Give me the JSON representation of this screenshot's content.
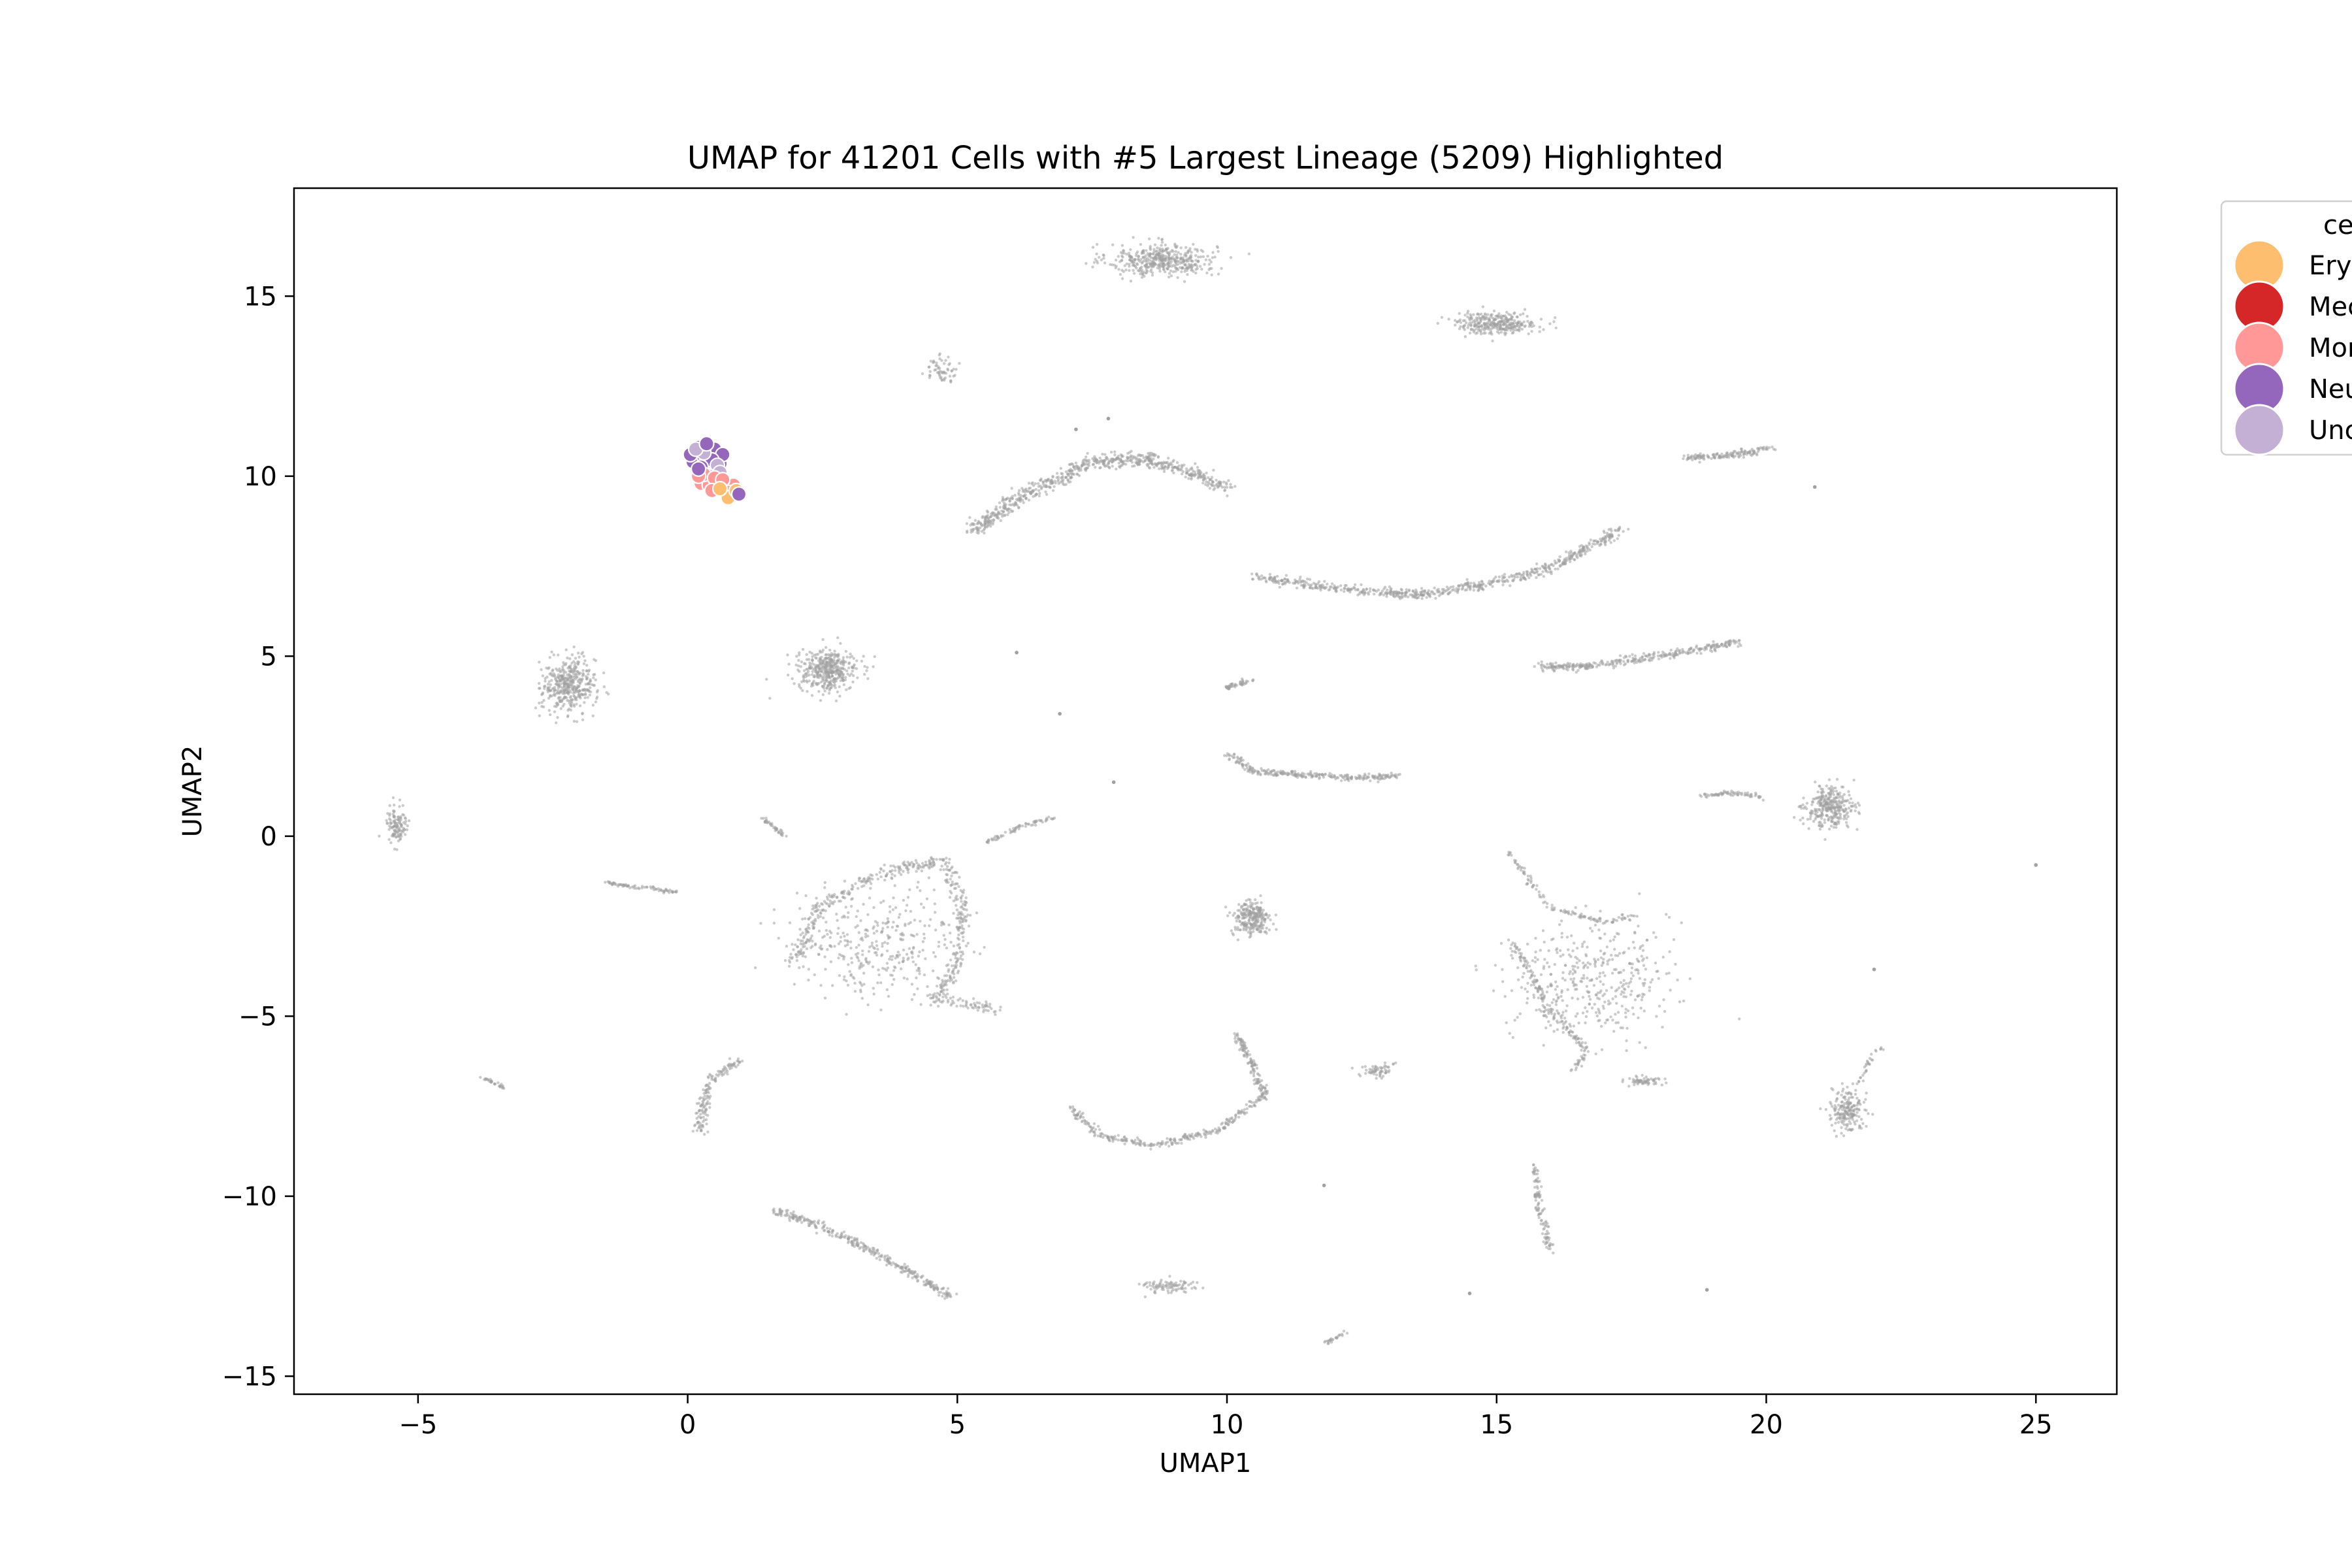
{
  "chart_data": {
    "type": "scatter",
    "title": "UMAP for 41201 Cells with #5 Largest Lineage (5209) Highlighted",
    "xlabel": "UMAP1",
    "ylabel": "UMAP2",
    "xlim": [
      -7.3,
      26.5
    ],
    "ylim": [
      -15.5,
      18.0
    ],
    "x_ticks": [
      -5,
      0,
      5,
      10,
      15,
      20,
      25
    ],
    "y_ticks": [
      -15,
      -10,
      -5,
      0,
      5,
      10,
      15
    ],
    "x_tick_labels": [
      "−5",
      "0",
      "5",
      "10",
      "15",
      "20",
      "25"
    ],
    "y_tick_labels": [
      "−15",
      "−10",
      "−5",
      "0",
      "5",
      "10",
      "15"
    ],
    "grid": false,
    "legend": {
      "title": "ce",
      "placement": "outside-upper-right",
      "entries": [
        {
          "label": "Ery",
          "color": "#fdbf6f"
        },
        {
          "label": "Mec",
          "color": "#d62728"
        },
        {
          "label": "Mon",
          "color": "#ff9896"
        },
        {
          "label": "Neu",
          "color": "#9467bd"
        },
        {
          "label": "Unc",
          "color": "#c5b0d5"
        }
      ]
    },
    "background_color": "#a0a0a0",
    "background_clusters": [
      {
        "shape": "blob",
        "x": 8.8,
        "y": 16.0,
        "rx": 1.0,
        "ry": 0.45,
        "n": 450
      },
      {
        "shape": "blob",
        "x": 15.0,
        "y": 14.25,
        "rx": 0.75,
        "ry": 0.3,
        "n": 320
      },
      {
        "shape": "blob",
        "x": 4.7,
        "y": 12.95,
        "rx": 0.3,
        "ry": 0.35,
        "n": 60
      },
      {
        "shape": "blob",
        "x": -2.2,
        "y": 4.2,
        "rx": 0.5,
        "ry": 0.75,
        "n": 420
      },
      {
        "shape": "blob",
        "x": 2.6,
        "y": 4.6,
        "rx": 0.55,
        "ry": 0.55,
        "n": 420
      },
      {
        "shape": "blob",
        "x": -5.4,
        "y": 0.3,
        "rx": 0.2,
        "ry": 0.6,
        "n": 120
      },
      {
        "shape": "blob",
        "x": 10.45,
        "y": -2.3,
        "rx": 0.35,
        "ry": 0.5,
        "n": 260
      },
      {
        "shape": "blob",
        "x": 21.2,
        "y": 0.8,
        "rx": 0.45,
        "ry": 0.55,
        "n": 320
      },
      {
        "shape": "blob",
        "x": 21.5,
        "y": -7.6,
        "rx": 0.3,
        "ry": 0.6,
        "n": 200
      },
      {
        "shape": "blob",
        "x": 12.8,
        "y": -6.5,
        "rx": 0.3,
        "ry": 0.2,
        "n": 60
      },
      {
        "shape": "blob",
        "x": 17.7,
        "y": -6.8,
        "rx": 0.35,
        "ry": 0.15,
        "n": 60
      },
      {
        "shape": "blob",
        "x": 8.9,
        "y": -12.5,
        "rx": 0.5,
        "ry": 0.2,
        "n": 90
      },
      {
        "shape": "blob",
        "x": 16.7,
        "y": -4.0,
        "rx": 1.5,
        "ry": 1.6,
        "n": 420
      },
      {
        "shape": "blob",
        "x": 3.6,
        "y": -3.0,
        "rx": 1.6,
        "ry": 1.4,
        "n": 360
      },
      {
        "shape": "path",
        "pts": [
          [
            5.3,
            8.5
          ],
          [
            6.0,
            9.3
          ],
          [
            7.0,
            10.0
          ],
          [
            7.5,
            10.4
          ],
          [
            8.5,
            10.5
          ],
          [
            9.5,
            10.0
          ],
          [
            10.0,
            9.7
          ]
        ],
        "w": 0.22,
        "n": 700
      },
      {
        "shape": "path",
        "pts": [
          [
            10.5,
            7.2
          ],
          [
            11.5,
            7.0
          ],
          [
            12.5,
            6.8
          ],
          [
            13.5,
            6.7
          ],
          [
            14.8,
            7.0
          ],
          [
            15.5,
            7.2
          ],
          [
            16.2,
            7.6
          ],
          [
            16.8,
            8.1
          ],
          [
            17.3,
            8.5
          ]
        ],
        "w": 0.16,
        "n": 650
      },
      {
        "shape": "path",
        "pts": [
          [
            15.8,
            4.7
          ],
          [
            16.5,
            4.7
          ],
          [
            18.0,
            5.0
          ],
          [
            19.5,
            5.4
          ]
        ],
        "w": 0.13,
        "n": 330
      },
      {
        "shape": "path",
        "pts": [
          [
            18.5,
            10.5
          ],
          [
            19.5,
            10.6
          ],
          [
            20.1,
            10.8
          ]
        ],
        "w": 0.1,
        "n": 150
      },
      {
        "shape": "path",
        "pts": [
          [
            10.0,
            2.3
          ],
          [
            10.5,
            1.8
          ],
          [
            11.5,
            1.7
          ],
          [
            12.5,
            1.6
          ],
          [
            13.2,
            1.7
          ]
        ],
        "w": 0.1,
        "n": 270
      },
      {
        "shape": "path",
        "pts": [
          [
            9.9,
            4.1
          ],
          [
            10.5,
            4.35
          ]
        ],
        "w": 0.07,
        "n": 50
      },
      {
        "shape": "path",
        "pts": [
          [
            18.8,
            1.1
          ],
          [
            19.3,
            1.2
          ],
          [
            19.9,
            1.1
          ]
        ],
        "w": 0.07,
        "n": 70
      },
      {
        "shape": "path",
        "pts": [
          [
            -1.5,
            -1.3
          ],
          [
            -1.0,
            -1.4
          ],
          [
            -0.2,
            -1.55
          ]
        ],
        "w": 0.06,
        "n": 80
      },
      {
        "shape": "path",
        "pts": [
          [
            1.4,
            0.5
          ],
          [
            1.8,
            0.0
          ]
        ],
        "w": 0.05,
        "n": 40
      },
      {
        "shape": "path",
        "pts": [
          [
            5.5,
            -0.2
          ],
          [
            6.2,
            0.3
          ],
          [
            6.8,
            0.5
          ]
        ],
        "w": 0.06,
        "n": 70
      },
      {
        "shape": "path",
        "pts": [
          [
            2.0,
            -3.5
          ],
          [
            2.4,
            -2.0
          ],
          [
            3.6,
            -1.0
          ],
          [
            4.8,
            -0.7
          ],
          [
            5.1,
            -2.0
          ],
          [
            5.0,
            -3.5
          ],
          [
            4.6,
            -4.5
          ],
          [
            5.8,
            -4.8
          ]
        ],
        "w": 0.18,
        "n": 520
      },
      {
        "shape": "path",
        "pts": [
          [
            7.1,
            -7.5
          ],
          [
            7.6,
            -8.3
          ],
          [
            8.6,
            -8.6
          ],
          [
            9.8,
            -8.2
          ],
          [
            10.7,
            -7.2
          ],
          [
            10.2,
            -5.5
          ]
        ],
        "w": 0.1,
        "n": 420
      },
      {
        "shape": "path",
        "pts": [
          [
            0.2,
            -8.2
          ],
          [
            0.4,
            -6.8
          ],
          [
            1.0,
            -6.2
          ]
        ],
        "w": 0.12,
        "n": 150
      },
      {
        "shape": "path",
        "pts": [
          [
            1.6,
            -10.4
          ],
          [
            2.2,
            -10.7
          ],
          [
            3.0,
            -11.2
          ],
          [
            4.0,
            -12.0
          ],
          [
            4.9,
            -12.8
          ]
        ],
        "w": 0.12,
        "n": 330
      },
      {
        "shape": "path",
        "pts": [
          [
            -3.8,
            -6.7
          ],
          [
            -3.4,
            -7.0
          ]
        ],
        "w": 0.05,
        "n": 30
      },
      {
        "shape": "path",
        "pts": [
          [
            15.7,
            -9.2
          ],
          [
            15.8,
            -10.5
          ],
          [
            16.0,
            -11.5
          ]
        ],
        "w": 0.09,
        "n": 110
      },
      {
        "shape": "path",
        "pts": [
          [
            21.7,
            -6.9
          ],
          [
            22.0,
            -6.0
          ],
          [
            22.2,
            -5.8
          ]
        ],
        "w": 0.06,
        "n": 30
      },
      {
        "shape": "path",
        "pts": [
          [
            11.8,
            -14.1
          ],
          [
            12.2,
            -13.8
          ]
        ],
        "w": 0.05,
        "n": 25
      },
      {
        "shape": "path",
        "pts": [
          [
            15.3,
            -3.0
          ],
          [
            16.0,
            -4.8
          ],
          [
            16.7,
            -6.0
          ],
          [
            16.4,
            -6.5
          ]
        ],
        "w": 0.1,
        "n": 160
      },
      {
        "shape": "path",
        "pts": [
          [
            15.2,
            -0.4
          ],
          [
            16.0,
            -2.0
          ],
          [
            17.0,
            -2.4
          ],
          [
            17.6,
            -2.2
          ]
        ],
        "w": 0.08,
        "n": 120
      }
    ],
    "background_singletons": [
      [
        6.1,
        5.1
      ],
      [
        6.9,
        3.4
      ],
      [
        7.9,
        1.5
      ],
      [
        20.9,
        9.7
      ],
      [
        25.0,
        -0.8
      ],
      [
        22.0,
        -3.7
      ],
      [
        11.8,
        -9.7
      ],
      [
        14.5,
        -12.7
      ],
      [
        18.9,
        -12.6
      ],
      [
        7.2,
        11.3
      ],
      [
        7.8,
        11.6
      ]
    ],
    "highlighted_points": [
      {
        "x": 0.15,
        "y": 10.5,
        "cat": "Neu"
      },
      {
        "x": 0.25,
        "y": 10.7,
        "cat": "Neu"
      },
      {
        "x": 0.35,
        "y": 10.8,
        "cat": "Neu"
      },
      {
        "x": 0.45,
        "y": 10.6,
        "cat": "Neu"
      },
      {
        "x": 0.2,
        "y": 10.3,
        "cat": "Neu"
      },
      {
        "x": 0.55,
        "y": 10.5,
        "cat": "Neu"
      },
      {
        "x": 0.1,
        "y": 10.4,
        "cat": "Neu"
      },
      {
        "x": 0.5,
        "y": 10.75,
        "cat": "Neu"
      },
      {
        "x": 0.3,
        "y": 10.55,
        "cat": "Neu"
      },
      {
        "x": 0.6,
        "y": 10.35,
        "cat": "Neu"
      },
      {
        "x": 0.4,
        "y": 10.2,
        "cat": "Neu"
      },
      {
        "x": 0.2,
        "y": 10.8,
        "cat": "Neu"
      },
      {
        "x": 0.65,
        "y": 10.6,
        "cat": "Neu"
      },
      {
        "x": 0.35,
        "y": 10.4,
        "cat": "Neu"
      },
      {
        "x": 0.05,
        "y": 10.6,
        "cat": "Neu"
      },
      {
        "x": 0.45,
        "y": 10.45,
        "cat": "Neu"
      },
      {
        "x": 0.25,
        "y": 10.25,
        "cat": "Neu"
      },
      {
        "x": 0.3,
        "y": 10.65,
        "cat": "Unc"
      },
      {
        "x": 0.55,
        "y": 10.3,
        "cat": "Unc"
      },
      {
        "x": 0.15,
        "y": 10.75,
        "cat": "Unc"
      },
      {
        "x": 0.95,
        "y": 9.55,
        "cat": "Unc"
      },
      {
        "x": 0.6,
        "y": 10.1,
        "cat": "Unc"
      },
      {
        "x": 0.4,
        "y": 10.0,
        "cat": "Unc"
      },
      {
        "x": 0.25,
        "y": 9.8,
        "cat": "Mon"
      },
      {
        "x": 0.4,
        "y": 9.75,
        "cat": "Mon"
      },
      {
        "x": 0.55,
        "y": 9.8,
        "cat": "Mon"
      },
      {
        "x": 0.7,
        "y": 9.7,
        "cat": "Mon"
      },
      {
        "x": 0.3,
        "y": 10.05,
        "cat": "Mon"
      },
      {
        "x": 0.5,
        "y": 9.95,
        "cat": "Mon"
      },
      {
        "x": 0.85,
        "y": 9.75,
        "cat": "Mon"
      },
      {
        "x": 0.45,
        "y": 9.6,
        "cat": "Mon"
      },
      {
        "x": 0.65,
        "y": 9.9,
        "cat": "Mon"
      },
      {
        "x": 0.2,
        "y": 10.0,
        "cat": "Mon"
      },
      {
        "x": 0.75,
        "y": 9.55,
        "cat": "Mon"
      },
      {
        "x": 0.75,
        "y": 9.4,
        "cat": "Ery"
      },
      {
        "x": 0.6,
        "y": 9.65,
        "cat": "Ery"
      },
      {
        "x": 0.9,
        "y": 9.6,
        "cat": "Ery"
      },
      {
        "x": 0.95,
        "y": 9.5,
        "cat": "Neu"
      },
      {
        "x": 0.35,
        "y": 10.9,
        "cat": "Neu"
      },
      {
        "x": 0.2,
        "y": 10.2,
        "cat": "Neu"
      }
    ]
  }
}
